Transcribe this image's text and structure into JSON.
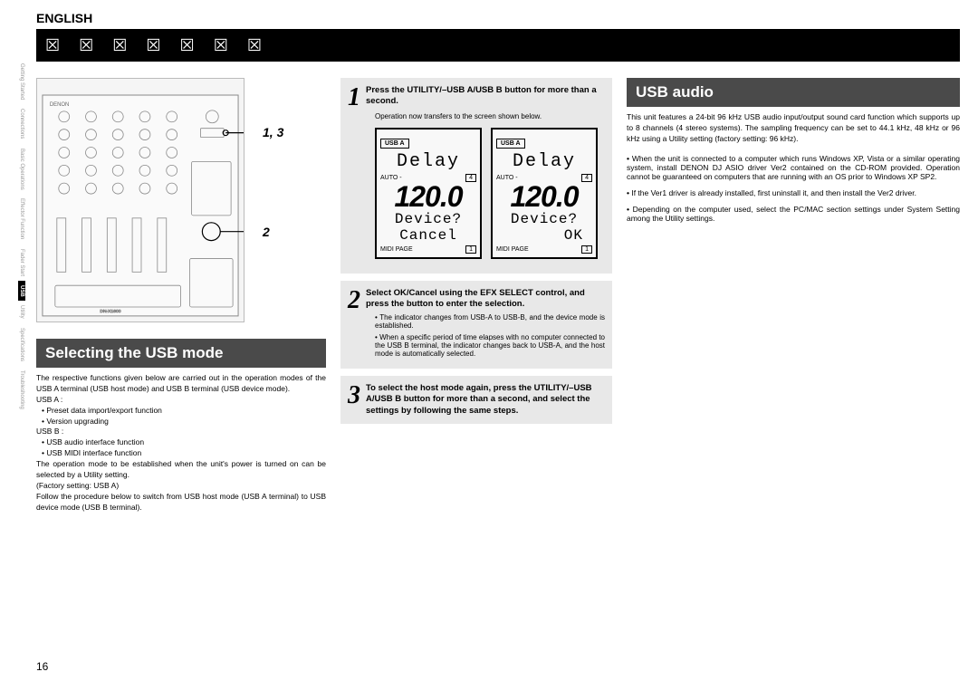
{
  "lang": "ENGLISH",
  "titleBarGlyphs": "☒ ☒ ☒ ☒ ☒ ☒ ☒",
  "sideTabs": [
    "Getting Started",
    "Connections",
    "Basic Operations",
    "Effector Function",
    "Fader Start",
    "USB",
    "Utility",
    "Specifications",
    "Troubleshooting"
  ],
  "activeTab": "USB",
  "callout1": "1, 3",
  "callout2": "2",
  "section1Title": "Selecting the USB mode",
  "section1Body": "The respective functions given below are carried out in the operation modes of the USB A terminal (USB host mode) and USB B terminal (USB device mode).",
  "usbA_label": "USB A :",
  "usbA_items": [
    "Preset data import/export function",
    "Version upgrading"
  ],
  "usbB_label": "USB B :",
  "usbB_items": [
    "USB audio interface function",
    "USB MIDI interface function"
  ],
  "section1Body2": "The operation mode to be established when the unit's power is turned on can be selected by a Utility setting.",
  "factory": "(Factory setting: USB A)",
  "section1Body3": "Follow the procedure below to switch from USB host mode (USB A terminal) to USB device mode (USB B terminal).",
  "step1": {
    "num": "1",
    "text_a": "Press the ",
    "text_b": "UTILITY/–USB A/USB B",
    "text_c": " button for more than a second.",
    "note": "Operation now transfers to the screen shown below."
  },
  "lcd1": {
    "usb": "USB A",
    "effect": "Delay",
    "auto": "AUTO -",
    "beat": "4",
    "bpm": "120.0",
    "q": "Device?",
    "action": "Cancel",
    "midi": "MIDI PAGE",
    "midiPage": "1"
  },
  "lcd2": {
    "usb": "USB A",
    "effect": "Delay",
    "auto": "AUTO -",
    "beat": "4",
    "bpm": "120.0",
    "q": "Device?",
    "action": "OK",
    "midi": "MIDI PAGE",
    "midiPage": "1"
  },
  "step2": {
    "num": "2",
    "text_a": "Select OK/Cancel using the ",
    "text_b": "EFX SELECT",
    "text_c": " control, and press the button to enter the selection.",
    "bullets": [
      "The indicator changes from USB-A to USB-B, and the device mode is established.",
      "When a specific period of time elapses with no computer connected to the USB B terminal, the indicator changes back to USB-A, and the host mode is automatically selected."
    ]
  },
  "step3": {
    "num": "3",
    "text_a": "To select the host mode again, press the ",
    "text_b": "UTILITY/–USB A/USB B",
    "text_c": " button for more than a second, and select the settings by following the same steps."
  },
  "section2Title": "USB audio",
  "section2Body": "This unit features a 24-bit 96 kHz USB audio input/output sound card function which supports up to 8 channels (4 stereo systems). The sampling frequency can be set to 44.1 kHz, 48 kHz or 96 kHz using a Utility setting (factory setting: 96 kHz).",
  "section2Bullets": [
    "When the unit is connected to a computer which runs Windows XP, Vista or a similar operating system, install DENON DJ ASIO driver Ver2 contained on the CD-ROM provided. Operation cannot be guaranteed on computers that are running with an OS prior to Windows XP SP2.",
    "If the Ver1 driver is already installed, first uninstall it, and then install the Ver2 driver.",
    "Depending on the computer used, select the PC/MAC section settings under System Setting among the Utility settings."
  ],
  "pageNum": "16",
  "colors": {
    "barBg": "#000000",
    "sectionBg": "#4a4a4a",
    "stepBg": "#e8e8e8",
    "text": "#000000"
  }
}
